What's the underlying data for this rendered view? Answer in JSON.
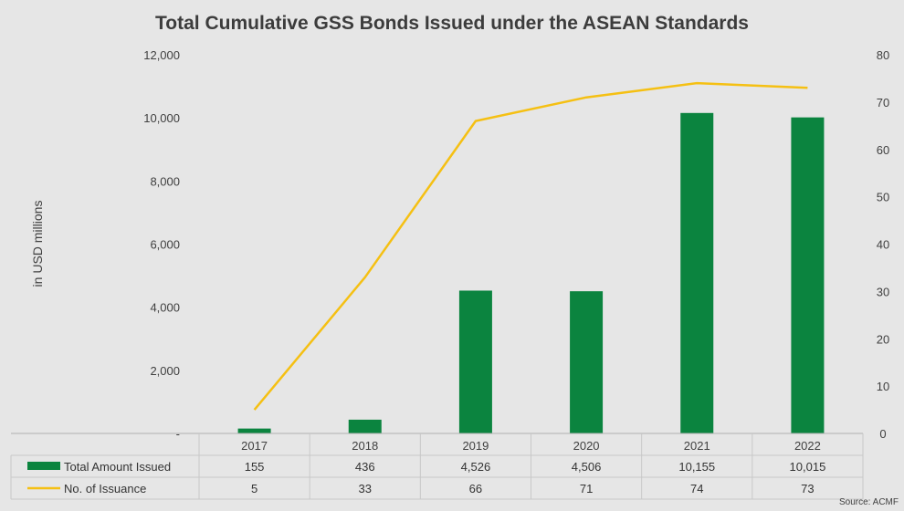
{
  "chart_data": {
    "type": "bar",
    "title": "Total Cumulative GSS Bonds Issued under the ASEAN Standards",
    "ylabel": "in USD millions",
    "y2label": "",
    "categories": [
      "2017",
      "2018",
      "2019",
      "2020",
      "2021",
      "2022"
    ],
    "series": [
      {
        "name": "Total Amount Issued",
        "type": "bar",
        "axis": "left",
        "color": "#0b843f",
        "values": [
          155,
          436,
          4526,
          4506,
          10155,
          10015
        ],
        "labels": [
          "155",
          "436",
          "4,526",
          "4,506",
          "10,155",
          "10,015"
        ]
      },
      {
        "name": "No. of Issuance",
        "type": "line",
        "axis": "right",
        "color": "#f5c013",
        "values": [
          5,
          33,
          66,
          71,
          74,
          73
        ],
        "labels": [
          "5",
          "33",
          "66",
          "71",
          "74",
          "73"
        ]
      }
    ],
    "ylim": [
      0,
      12000
    ],
    "y2lim": [
      0,
      80
    ],
    "yticks": [
      "-",
      "2,000",
      "4,000",
      "6,000",
      "8,000",
      "10,000",
      "12,000"
    ],
    "y2ticks": [
      "0",
      "10",
      "20",
      "30",
      "40",
      "50",
      "60",
      "70",
      "80"
    ],
    "grid": false,
    "legend": "data-table"
  },
  "source": "Source: ACMF"
}
